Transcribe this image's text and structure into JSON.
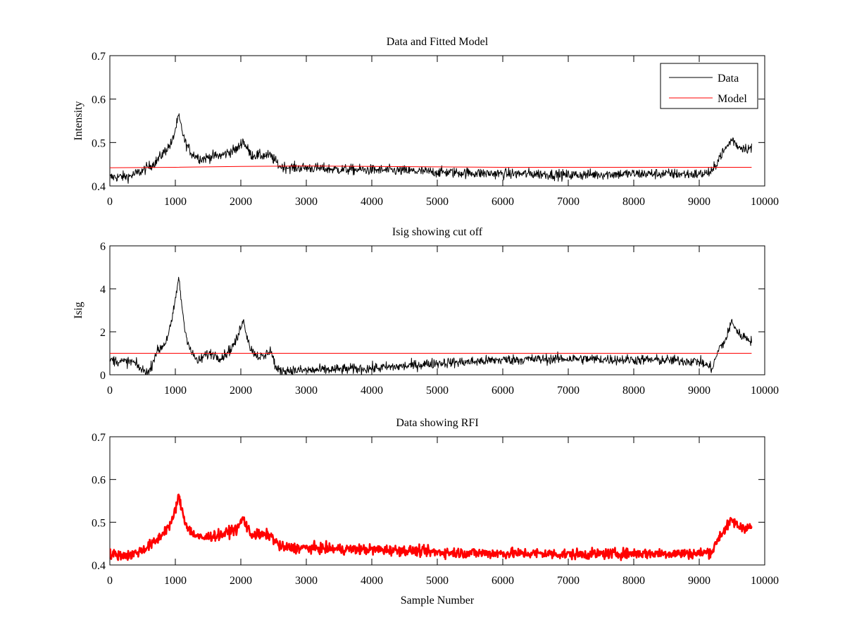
{
  "chart_data": [
    {
      "type": "line",
      "title": "Data and Fitted Model",
      "xlabel": "",
      "ylabel": "Intensity",
      "xlim": [
        0,
        10000
      ],
      "ylim": [
        0.4,
        0.7
      ],
      "xticks": [
        0,
        1000,
        2000,
        3000,
        4000,
        5000,
        6000,
        7000,
        8000,
        9000,
        10000
      ],
      "yticks": [
        0.4,
        0.5,
        0.6,
        0.7
      ],
      "ytick_labels": [
        "0.4",
        "0.5",
        "0.6",
        "0.7"
      ],
      "legend_position": "top-right",
      "series": [
        {
          "name": "Data",
          "color": "#000000",
          "noise": 0.006,
          "x": [
            0,
            300,
            500,
            700,
            850,
            950,
            1050,
            1150,
            1250,
            1400,
            1550,
            1700,
            1850,
            1950,
            2030,
            2150,
            2300,
            2450,
            2600,
            2800,
            3000,
            3500,
            4000,
            4500,
            5000,
            5500,
            6000,
            6500,
            7000,
            7500,
            8000,
            8500,
            9000,
            9200,
            9300,
            9400,
            9500,
            9600,
            9800
          ],
          "y": [
            0.42,
            0.422,
            0.435,
            0.455,
            0.482,
            0.5,
            0.56,
            0.5,
            0.475,
            0.462,
            0.468,
            0.47,
            0.48,
            0.485,
            0.505,
            0.472,
            0.47,
            0.47,
            0.445,
            0.442,
            0.442,
            0.438,
            0.437,
            0.435,
            0.432,
            0.43,
            0.428,
            0.428,
            0.425,
            0.427,
            0.428,
            0.428,
            0.427,
            0.432,
            0.465,
            0.485,
            0.508,
            0.49,
            0.486
          ]
        },
        {
          "name": "Model",
          "color": "#ff0000",
          "noise": 0,
          "x": [
            0,
            1000,
            2000,
            3000,
            4000,
            5000,
            6000,
            7000,
            8000,
            9000,
            9800
          ],
          "y": [
            0.442,
            0.443,
            0.445,
            0.446,
            0.445,
            0.444,
            0.443,
            0.443,
            0.443,
            0.443,
            0.443
          ]
        }
      ]
    },
    {
      "type": "line",
      "title": "Isig showing cut off",
      "xlabel": "",
      "ylabel": "Isig",
      "xlim": [
        0,
        10000
      ],
      "ylim": [
        0,
        6
      ],
      "xticks": [
        0,
        1000,
        2000,
        3000,
        4000,
        5000,
        6000,
        7000,
        8000,
        9000,
        10000
      ],
      "yticks": [
        0,
        2,
        4,
        6
      ],
      "ytick_labels": [
        "0",
        "2",
        "4",
        "6"
      ],
      "series": [
        {
          "color": "#000000",
          "noise": 0.12,
          "x": [
            0,
            200,
            350,
            500,
            600,
            700,
            850,
            950,
            1050,
            1150,
            1250,
            1350,
            1450,
            1550,
            1700,
            1850,
            1950,
            2030,
            2150,
            2250,
            2350,
            2450,
            2550,
            3000,
            3500,
            4000,
            4500,
            5000,
            5500,
            6000,
            6500,
            7000,
            7500,
            8000,
            8500,
            9000,
            9200,
            9300,
            9400,
            9500,
            9600,
            9800
          ],
          "y": [
            0.7,
            0.6,
            0.6,
            0.2,
            0.1,
            1.0,
            1.5,
            2.5,
            4.5,
            2.0,
            1.0,
            0.6,
            0.9,
            1.0,
            0.8,
            1.2,
            1.7,
            2.6,
            1.2,
            0.9,
            0.8,
            1.2,
            0.2,
            0.2,
            0.25,
            0.3,
            0.4,
            0.55,
            0.6,
            0.7,
            0.72,
            0.75,
            0.72,
            0.7,
            0.68,
            0.62,
            0.3,
            1.2,
            1.6,
            2.5,
            1.9,
            1.6
          ]
        },
        {
          "color": "#ff0000",
          "noise": 0,
          "x": [
            0,
            9800
          ],
          "y": [
            1.0,
            1.0
          ]
        }
      ]
    },
    {
      "type": "line",
      "title": "Data showing RFI",
      "xlabel": "Sample Number",
      "ylabel": "",
      "xlim": [
        0,
        10000
      ],
      "ylim": [
        0.4,
        0.7
      ],
      "xticks": [
        0,
        1000,
        2000,
        3000,
        4000,
        5000,
        6000,
        7000,
        8000,
        9000,
        10000
      ],
      "yticks": [
        0.4,
        0.5,
        0.6,
        0.7
      ],
      "ytick_labels": [
        "0.4",
        "0.5",
        "0.6",
        "0.7"
      ],
      "series": [
        {
          "color": "#ff0000",
          "noise": 0.006,
          "x": [
            0,
            300,
            500,
            700,
            850,
            950,
            1050,
            1150,
            1250,
            1400,
            1550,
            1700,
            1850,
            1950,
            2030,
            2150,
            2300,
            2450,
            2600,
            2800,
            3000,
            3500,
            4000,
            4500,
            5000,
            5500,
            6000,
            6500,
            7000,
            7500,
            8000,
            8500,
            9000,
            9200,
            9300,
            9400,
            9500,
            9600,
            9800
          ],
          "y": [
            0.425,
            0.422,
            0.435,
            0.455,
            0.482,
            0.5,
            0.56,
            0.5,
            0.475,
            0.462,
            0.468,
            0.47,
            0.48,
            0.485,
            0.51,
            0.472,
            0.47,
            0.47,
            0.442,
            0.44,
            0.44,
            0.437,
            0.436,
            0.434,
            0.43,
            0.428,
            0.427,
            0.427,
            0.425,
            0.426,
            0.427,
            0.427,
            0.427,
            0.432,
            0.465,
            0.485,
            0.505,
            0.49,
            0.487
          ]
        }
      ]
    }
  ]
}
